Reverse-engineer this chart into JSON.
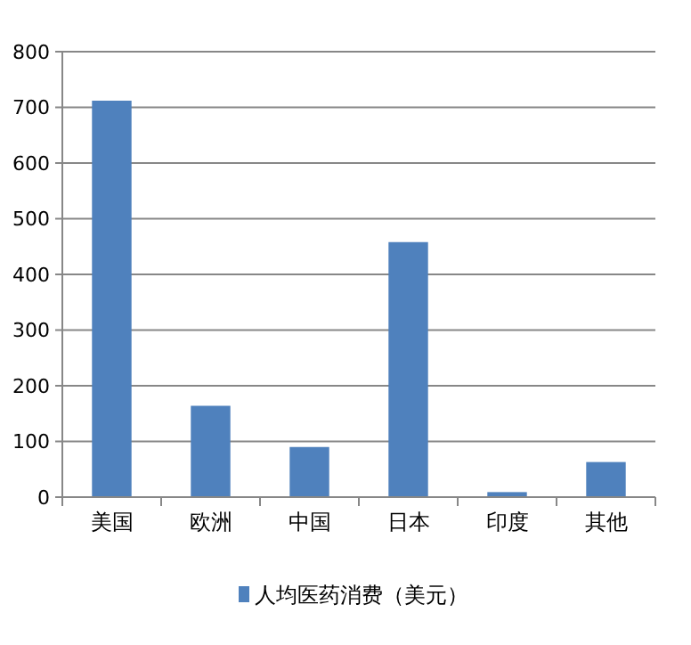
{
  "chart_data": {
    "type": "bar",
    "categories": [
      "美国",
      "欧洲",
      "中国",
      "日本",
      "印度",
      "其他"
    ],
    "series": [
      {
        "name": "人均医药消费（美元）",
        "color": "#4f81bd",
        "values": [
          712,
          164,
          90,
          458,
          9,
          63
        ]
      }
    ],
    "ylim": [
      0,
      800
    ],
    "yticks": [
      0,
      100,
      200,
      300,
      400,
      500,
      600,
      700,
      800
    ],
    "grid": "y",
    "legend": "bottom"
  }
}
